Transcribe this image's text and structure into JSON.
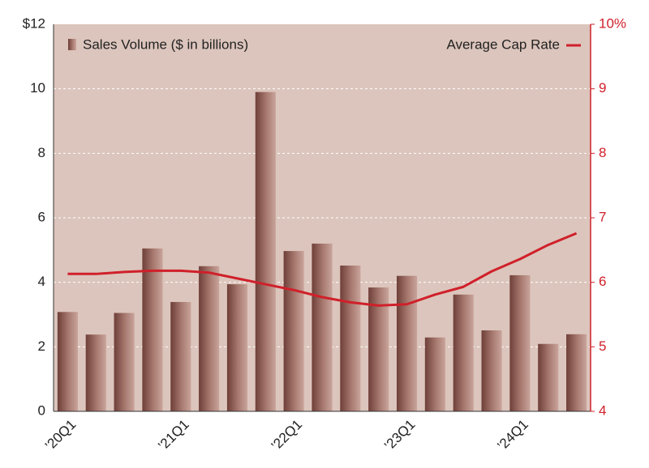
{
  "chart_data": {
    "type": "bar",
    "categories": [
      "’20Q1",
      null,
      null,
      null,
      "’21Q1",
      null,
      null,
      null,
      "’22Q1",
      null,
      null,
      null,
      "’23Q1",
      null,
      null,
      null,
      "’24Q1",
      null,
      null
    ],
    "series": [
      {
        "name": "Sales Volume ($ in billions)",
        "type": "bar",
        "color": "#8a5a52",
        "axis": "y",
        "values": [
          3.08,
          2.38,
          3.05,
          5.05,
          3.39,
          4.5,
          3.94,
          9.9,
          4.97,
          5.2,
          4.52,
          3.84,
          4.2,
          2.29,
          3.62,
          2.51,
          4.22,
          2.09,
          2.39
        ]
      },
      {
        "name": "Average Cap Rate",
        "type": "line",
        "color": "#d0202a",
        "axis": "y2",
        "values": [
          6.13,
          6.13,
          6.16,
          6.18,
          6.18,
          6.15,
          6.06,
          5.97,
          5.88,
          5.77,
          5.69,
          5.64,
          5.66,
          5.81,
          5.93,
          6.17,
          6.36,
          6.58,
          6.76
        ]
      }
    ],
    "ylim": [
      0,
      12
    ],
    "yticks": [
      0,
      2,
      4,
      6,
      8,
      10,
      {
        "value": 12,
        "label": "$12"
      }
    ],
    "y2lim": [
      4,
      10
    ],
    "y2ticks": [
      4,
      5,
      6,
      7,
      8,
      9,
      {
        "value": 10,
        "label": "10%"
      }
    ],
    "y2color": "#d0202a",
    "plot_background": "#dcc5bc",
    "grid": true
  }
}
